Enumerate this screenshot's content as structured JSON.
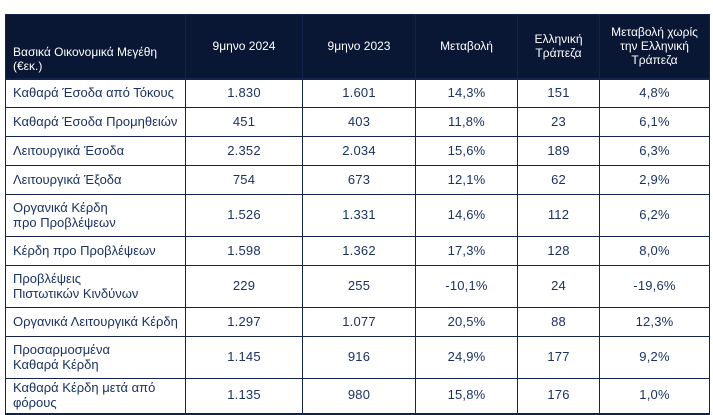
{
  "colors": {
    "header_bg": "#0a1734",
    "header_text": "#ffffff",
    "body_text": "#1b3263",
    "border": "#13234e",
    "page_bg": "#ffffff"
  },
  "table": {
    "header": {
      "metric": "Βασικά Οικονομικά Μεγέθη\n(€εκ.)",
      "period_2024": "9μηνο 2024",
      "period_2023": "9μηνο 2023",
      "change": "Μεταβολή",
      "hellenic_bank": "Ελληνική\nΤράπεζα",
      "change_excl": "Μεταβολή χωρίς\nτην Ελληνική\nΤράπεζα"
    },
    "rows": [
      {
        "label": "Καθαρά Έσοδα από Τόκους",
        "p2024": "1.830",
        "p2023": "1.601",
        "change": "14,3%",
        "hellenic": "151",
        "change_excl": "4,8%"
      },
      {
        "label": "Καθαρά Έσοδα Προμηθειών",
        "p2024": "451",
        "p2023": "403",
        "change": "11,8%",
        "hellenic": "23",
        "change_excl": "6,1%"
      },
      {
        "label": "Λειτουργικά Έσοδα",
        "p2024": "2.352",
        "p2023": "2.034",
        "change": "15,6%",
        "hellenic": "189",
        "change_excl": "6,3%"
      },
      {
        "label": "Λειτουργικά Έξοδα",
        "p2024": "754",
        "p2023": "673",
        "change": "12,1%",
        "hellenic": "62",
        "change_excl": "2,9%"
      },
      {
        "label": "Οργανικά Κέρδη\nπρο Προβλέψεων",
        "p2024": "1.526",
        "p2023": "1.331",
        "change": "14,6%",
        "hellenic": "112",
        "change_excl": "6,2%"
      },
      {
        "label": "Κέρδη προ Προβλέψεων",
        "p2024": "1.598",
        "p2023": "1.362",
        "change": "17,3%",
        "hellenic": "128",
        "change_excl": "8,0%"
      },
      {
        "label": "Προβλέψεις\nΠιστωτικών Κινδύνων",
        "p2024": "229",
        "p2023": "255",
        "change": "-10,1%",
        "hellenic": "24",
        "change_excl": "-19,6%"
      },
      {
        "label": "Οργανικά Λειτουργικά Κέρδη",
        "p2024": "1.297",
        "p2023": "1.077",
        "change": "20,5%",
        "hellenic": "88",
        "change_excl": "12,3%"
      },
      {
        "label": "Προσαρμοσμένα\nΚαθαρά Κέρδη",
        "p2024": "1.145",
        "p2023": "916",
        "change": "24,9%",
        "hellenic": "177",
        "change_excl": "9,2%"
      },
      {
        "label": "Καθαρά Κέρδη μετά από\nφόρους",
        "p2024": "1.135",
        "p2023": "980",
        "change": "15,8%",
        "hellenic": "176",
        "change_excl": "1,0%"
      }
    ]
  }
}
